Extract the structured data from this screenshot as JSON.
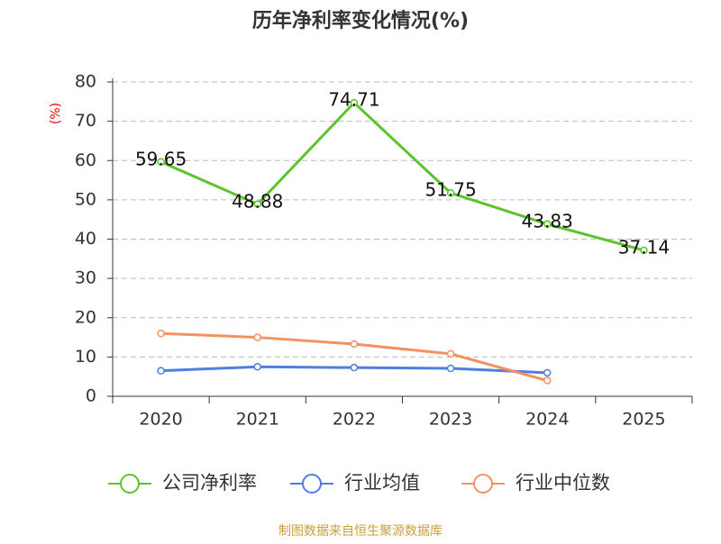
{
  "chart_data": {
    "type": "line",
    "title": "历年净利率变化情况(%)",
    "y_label": "(%)",
    "categories": [
      "2020",
      "2021",
      "2022",
      "2023",
      "2024",
      "2025"
    ],
    "series": [
      {
        "name": "公司净利率",
        "color": "#5cc42b",
        "values": [
          59.65,
          48.88,
          74.71,
          51.75,
          43.83,
          37.14
        ],
        "data_labels": true
      },
      {
        "name": "行业均值",
        "color": "#4e7ee0",
        "values": [
          6.5,
          7.5,
          7.3,
          7.1,
          6.0,
          null
        ]
      },
      {
        "name": "行业中位数",
        "color": "#f5915e",
        "values": [
          16.0,
          15.0,
          13.3,
          10.8,
          4.0,
          null
        ]
      }
    ],
    "ylim": [
      0,
      80
    ],
    "yticks": [
      0,
      10,
      20,
      30,
      40,
      50,
      60,
      70,
      80
    ],
    "grid": true,
    "source": "制图数据来自恒生聚源数据库"
  }
}
